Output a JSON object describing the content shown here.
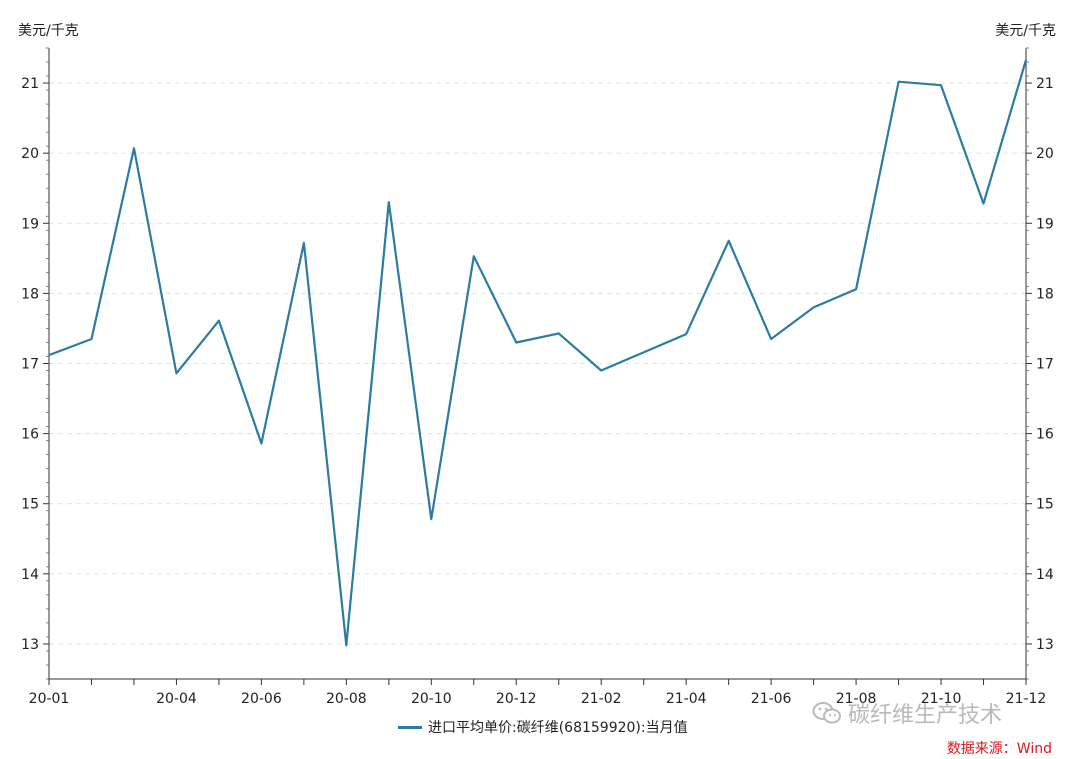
{
  "chart_data": {
    "type": "line",
    "y_label_left": "美元/千克",
    "y_label_right": "美元/千克",
    "ylim": [
      12.5,
      21.5
    ],
    "y_ticks": [
      13,
      14,
      15,
      16,
      17,
      18,
      19,
      20,
      21
    ],
    "grid": "horizontal dashed",
    "x_tick_labels": [
      "20-01",
      "20-04",
      "20-06",
      "20-08",
      "20-10",
      "20-12",
      "21-02",
      "21-04",
      "21-06",
      "21-08",
      "21-10",
      "21-12"
    ],
    "x": [
      "20-01",
      "20-02",
      "20-03",
      "20-04",
      "20-05",
      "20-06",
      "20-07",
      "20-08",
      "20-09",
      "20-10",
      "20-11",
      "20-12",
      "21-01",
      "21-02",
      "21-03",
      "21-04",
      "21-05",
      "21-06",
      "21-07",
      "21-08",
      "21-09",
      "21-10",
      "21-11",
      "21-12"
    ],
    "series": [
      {
        "name": "进口平均单价:碳纤维(68159920):当月值",
        "color": "#2b7ba4",
        "values": [
          17.12,
          17.35,
          20.07,
          16.86,
          17.61,
          15.86,
          18.72,
          12.98,
          19.3,
          14.78,
          18.53,
          17.3,
          17.43,
          16.9,
          null,
          17.42,
          18.75,
          17.35,
          17.8,
          18.06,
          21.02,
          20.97,
          19.28,
          21.33
        ]
      }
    ],
    "legend_position": "bottom-center"
  },
  "watermark": "碳纤维生产技术",
  "source": "数据来源：Wind"
}
